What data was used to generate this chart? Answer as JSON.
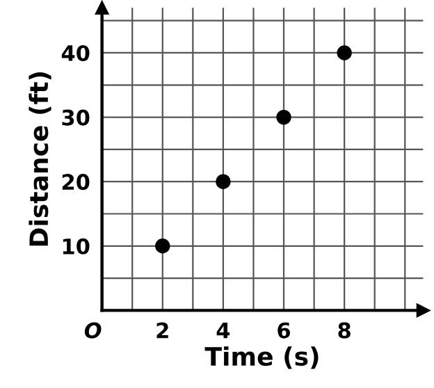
{
  "chart_data": {
    "type": "scatter",
    "xlabel": "Time (s)",
    "ylabel": "Distance (ft)",
    "x": [
      2,
      4,
      6,
      8
    ],
    "series": [
      {
        "color": "#000000",
        "values": [
          10,
          20,
          30,
          40
        ]
      }
    ],
    "xlim": [
      0,
      10.6
    ],
    "ylim": [
      0,
      47
    ],
    "xticks": [
      {
        "value": 0,
        "label": "O"
      },
      {
        "value": 1,
        "label": null
      },
      2,
      {
        "value": 3,
        "label": null
      },
      4,
      {
        "value": 5,
        "label": null
      },
      6,
      {
        "value": 7,
        "label": null
      },
      8,
      {
        "value": 9,
        "label": null
      },
      {
        "value": 10,
        "label": null
      }
    ],
    "yticks": [
      {
        "value": 5,
        "label": null
      },
      10,
      {
        "value": 15,
        "label": null
      },
      20,
      {
        "value": 25,
        "label": null
      },
      30,
      {
        "value": 35,
        "label": null
      },
      40,
      {
        "value": 45,
        "label": null
      }
    ],
    "grid": true,
    "marker": "circle"
  }
}
